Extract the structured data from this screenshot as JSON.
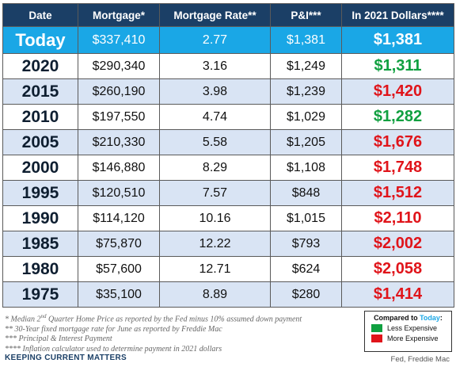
{
  "header": {
    "date": "Date",
    "mortgage": "Mortgage*",
    "rate": "Mortgage Rate**",
    "pi": "P&I***",
    "dollars2021": "In 2021 Dollars****"
  },
  "rows": [
    {
      "year": "Today",
      "mortgage": "$337,410",
      "rate": "2.77",
      "pi": "$1,381",
      "dollars": "$1,381"
    },
    {
      "year": "2020",
      "mortgage": "$290,340",
      "rate": "3.16",
      "pi": "$1,249",
      "dollars": "$1,311"
    },
    {
      "year": "2015",
      "mortgage": "$260,190",
      "rate": "3.98",
      "pi": "$1,239",
      "dollars": "$1,420"
    },
    {
      "year": "2010",
      "mortgage": "$197,550",
      "rate": "4.74",
      "pi": "$1,029",
      "dollars": "$1,282"
    },
    {
      "year": "2005",
      "mortgage": "$210,330",
      "rate": "5.58",
      "pi": "$1,205",
      "dollars": "$1,676"
    },
    {
      "year": "2000",
      "mortgage": "$146,880",
      "rate": "8.29",
      "pi": "$1,108",
      "dollars": "$1,748"
    },
    {
      "year": "1995",
      "mortgage": "$120,510",
      "rate": "7.57",
      "pi": "$848",
      "dollars": "$1,512"
    },
    {
      "year": "1990",
      "mortgage": "$114,120",
      "rate": "10.16",
      "pi": "$1,015",
      "dollars": "$2,110"
    },
    {
      "year": "1985",
      "mortgage": "$75,870",
      "rate": "12.22",
      "pi": "$793",
      "dollars": "$2,002"
    },
    {
      "year": "1980",
      "mortgage": "$57,600",
      "rate": "12.71",
      "pi": "$624",
      "dollars": "$2,058"
    },
    {
      "year": "1975",
      "mortgage": "$35,100",
      "rate": "8.89",
      "pi": "$280",
      "dollars": "$1,414"
    }
  ],
  "footnotes": {
    "n1_pre": "* Median 2",
    "n1_sup": "nd",
    "n1_post": " Quarter Home Price as reported by the Fed minus 10% assumed down payment",
    "n2": "** 30-Year fixed mortgage rate for June as reported by Freddie Mac",
    "n3": "*** Principal & Interest Payment",
    "n4": "**** Inflation calculator used to determine payment in 2021 dollars"
  },
  "brand": "KEEPING CURRENT MATTERS",
  "legend": {
    "title_prefix": "Compared to ",
    "title_today": "Today",
    "title_suffix": ":",
    "less": "Less Expensive",
    "more": "More Expensive",
    "less_color": "#10a040",
    "more_color": "#e0141a"
  },
  "source": "Fed, Freddie Mac",
  "colors": {
    "header_bg": "#1b3f66",
    "today_bg": "#1aa7e6",
    "row_tint": "#d9e4f4"
  }
}
